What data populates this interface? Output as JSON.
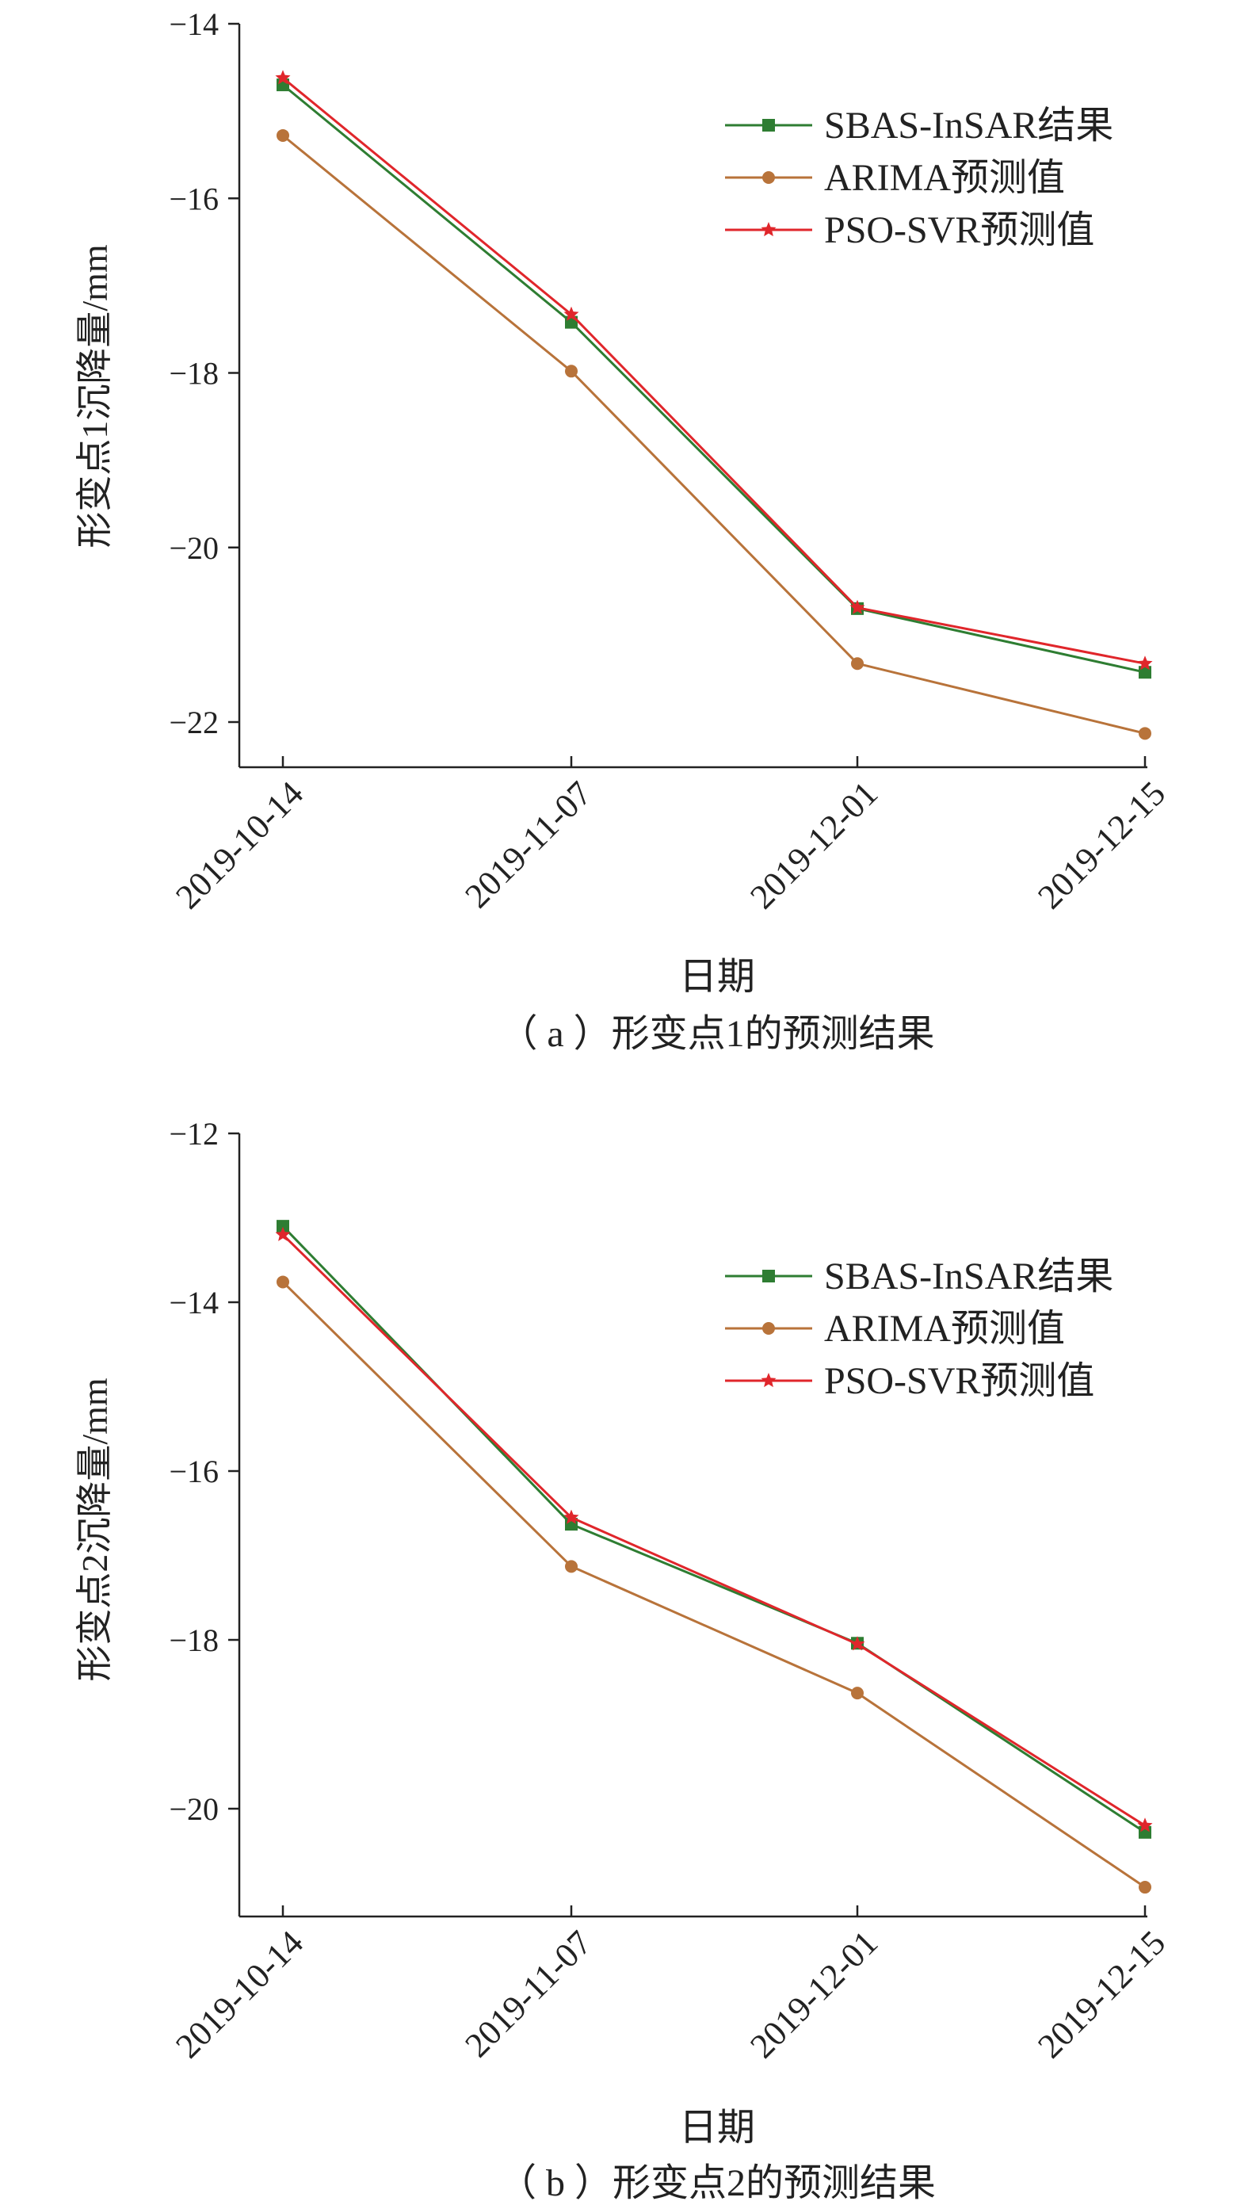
{
  "chart_data": [
    {
      "type": "line",
      "caption": "（ a ）形变点1的预测结果",
      "xlabel": "日期",
      "ylabel": "形变点1沉降量/mm",
      "categories": [
        "2019-10-14",
        "2019-11-07",
        "2019-12-01",
        "2019-12-15"
      ],
      "ylim": [
        -22.5,
        -14
      ],
      "yticks": [
        -14,
        -16,
        -18,
        -20,
        -22
      ],
      "ytick_labels": [
        "−14",
        "−16",
        "−18",
        "−20",
        "−22"
      ],
      "legend_position": "top-right",
      "grid": false,
      "series": [
        {
          "name": "SBAS-InSAR结果",
          "color": "#2e7d32",
          "marker": "square",
          "values": [
            -14.7,
            -17.42,
            -20.7,
            -21.43
          ]
        },
        {
          "name": "ARIMA预测值",
          "color": "#b8733a",
          "marker": "circle",
          "values": [
            -15.28,
            -17.98,
            -21.33,
            -22.13
          ]
        },
        {
          "name": "PSO-SVR预测值",
          "color": "#e0262b",
          "marker": "star",
          "values": [
            -14.62,
            -17.33,
            -20.69,
            -21.33
          ]
        }
      ]
    },
    {
      "type": "line",
      "caption": "（ b ）形变点2的预测结果",
      "xlabel": "日期",
      "ylabel": "形变点2沉降量/mm",
      "categories": [
        "2019-10-14",
        "2019-11-07",
        "2019-12-01",
        "2019-12-15"
      ],
      "ylim": [
        -21.3,
        -12
      ],
      "yticks": [
        -12,
        -14,
        -16,
        -18,
        -20
      ],
      "ytick_labels": [
        "−12",
        "−14",
        "−16",
        "−18",
        "−20"
      ],
      "legend_position": "top-right",
      "grid": false,
      "series": [
        {
          "name": "SBAS-InSAR结果",
          "color": "#2e7d32",
          "marker": "square",
          "values": [
            -13.1,
            -16.63,
            -18.04,
            -20.28
          ]
        },
        {
          "name": "ARIMA预测值",
          "color": "#b8733a",
          "marker": "circle",
          "values": [
            -13.76,
            -17.13,
            -18.63,
            -20.93
          ]
        },
        {
          "name": "PSO-SVR预测值",
          "color": "#e0262b",
          "marker": "star",
          "values": [
            -13.2,
            -16.55,
            -18.05,
            -20.2
          ]
        }
      ]
    }
  ]
}
